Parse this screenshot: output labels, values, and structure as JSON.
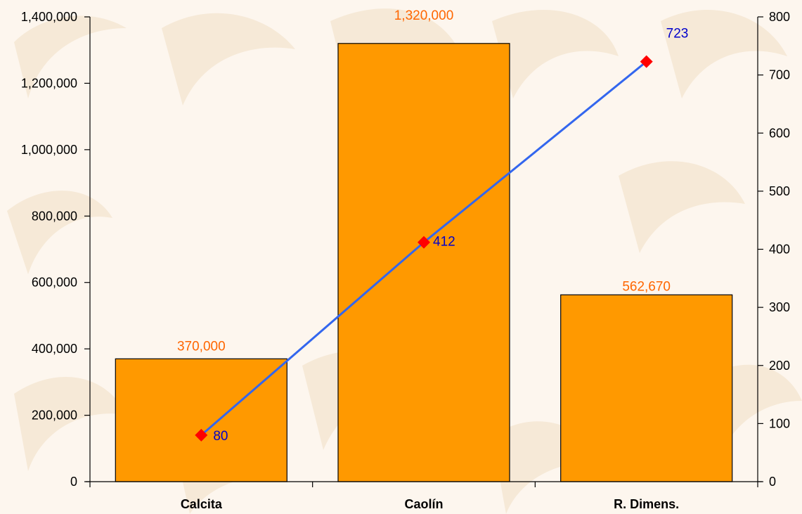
{
  "chart_data": {
    "type": "bar",
    "categories": [
      "Calcita",
      "Caolín",
      "R. Dimens."
    ],
    "series": [
      {
        "values": [
          370000,
          1320000,
          562670
        ],
        "axis": "left",
        "style": "bar"
      },
      {
        "values": [
          80,
          412,
          723
        ],
        "axis": "right",
        "style": "line"
      }
    ],
    "data_labels": {
      "bars": [
        "370,000",
        "1,320,000",
        "562,670"
      ],
      "line": [
        "80",
        "412",
        "723"
      ]
    },
    "y_left": {
      "ylim": [
        0,
        1400000
      ],
      "ticks": [
        0,
        200000,
        400000,
        600000,
        800000,
        1000000,
        1200000,
        1400000
      ],
      "tick_labels": [
        "0",
        "200,000",
        "400,000",
        "600,000",
        "800,000",
        "1,000,000",
        "1,200,000",
        "1,400,000"
      ]
    },
    "y_right": {
      "ylim": [
        0,
        800
      ],
      "ticks": [
        0,
        100,
        200,
        300,
        400,
        500,
        600,
        700,
        800
      ],
      "tick_labels": [
        "0",
        "100",
        "200",
        "300",
        "400",
        "500",
        "600",
        "700",
        "800"
      ]
    },
    "grid": false,
    "legend": "none",
    "title": "",
    "xlabel": "",
    "ylabel": ""
  },
  "colors": {
    "bar_fill": "#ff9900",
    "bar_stroke": "#000000",
    "line": "#3366ee",
    "marker": "#ff0000",
    "bar_label": "#ff6600",
    "line_label": "#0000cc",
    "axis": "#000000",
    "background": "#fdf6ee",
    "watermark": "#f5e6d2"
  }
}
